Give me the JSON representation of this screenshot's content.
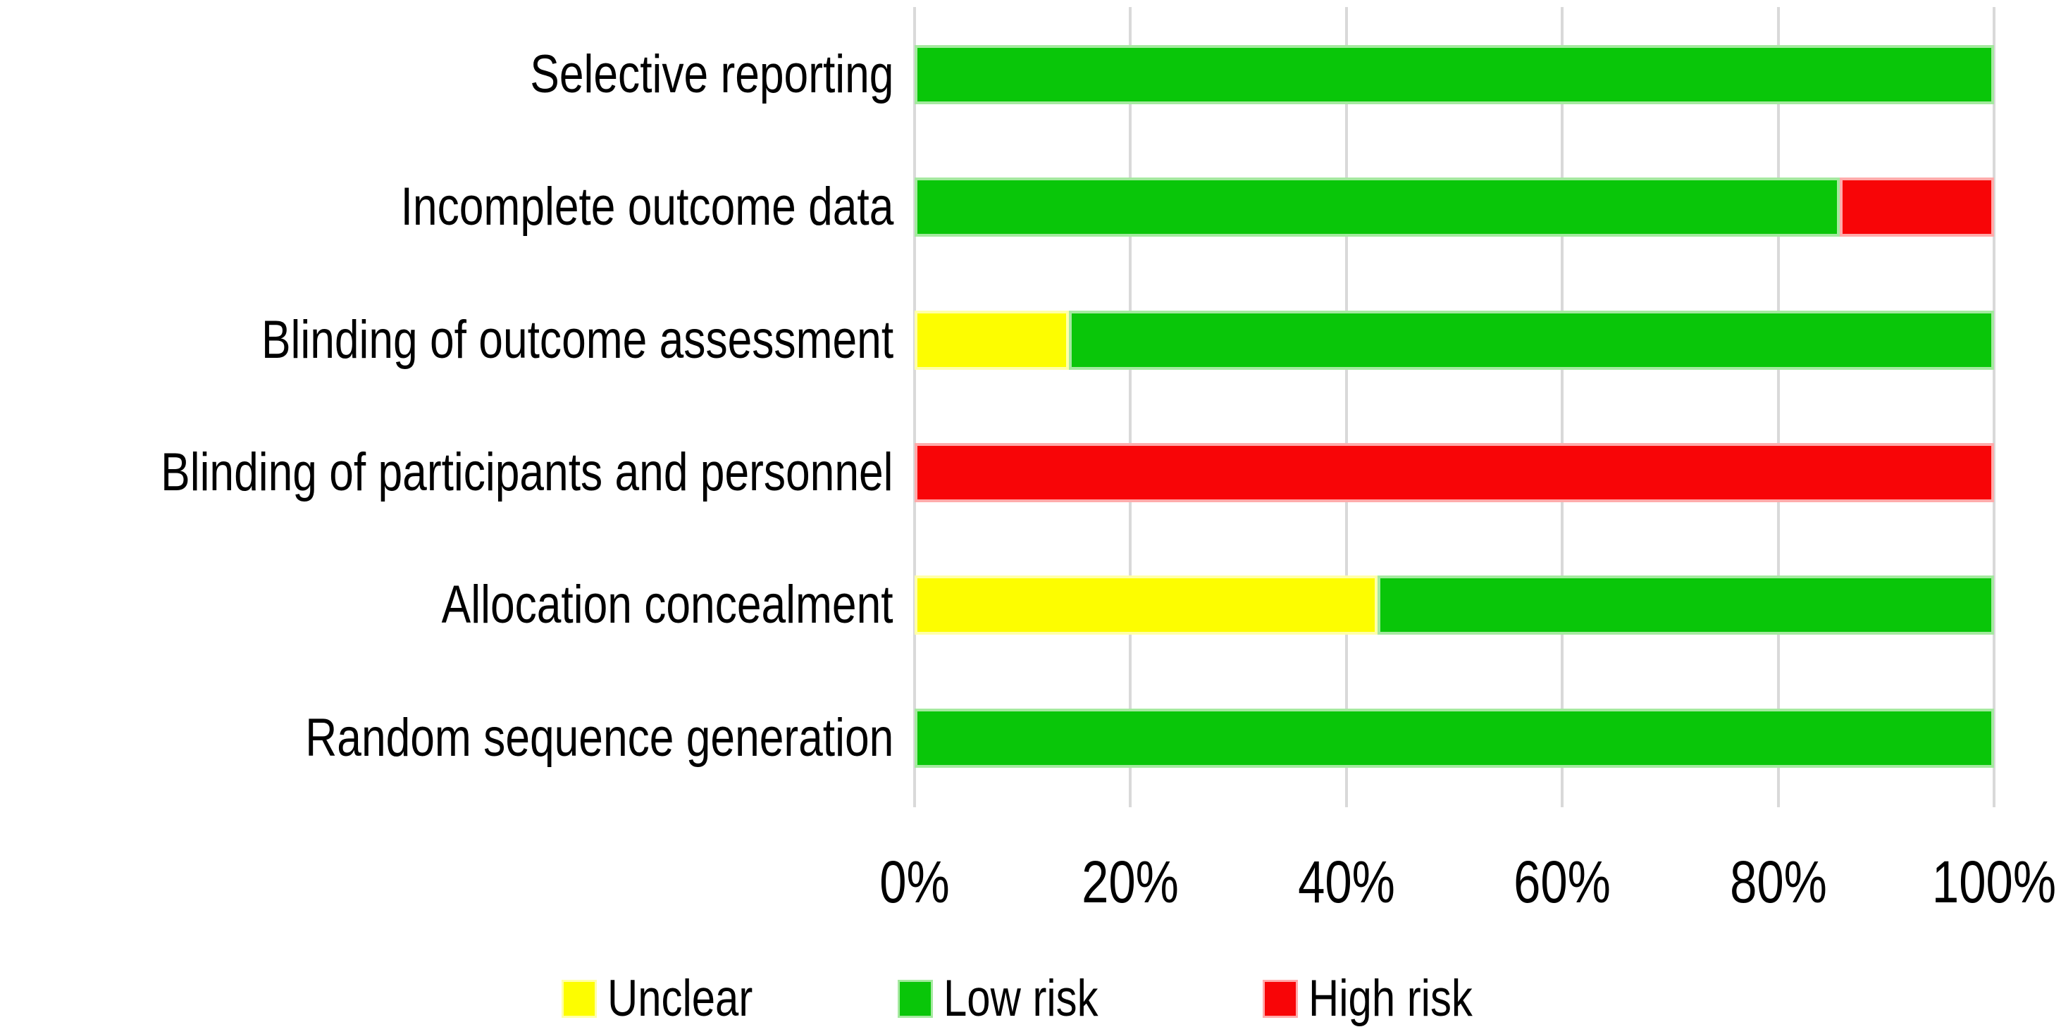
{
  "chart_data": {
    "type": "bar",
    "orientation": "horizontal",
    "stacked": true,
    "title": "",
    "xlabel": "",
    "ylabel": "",
    "units": "percent of studies",
    "categories": [
      "Selective reporting",
      "Incomplete outcome data",
      "Blinding of outcome assessment",
      "Blinding of participants and personnel",
      "Allocation concealment",
      "Random sequence generation"
    ],
    "series": [
      {
        "name": "Unclear",
        "color": "#FDFD00",
        "halo": "#FFFFA8",
        "values": [
          0,
          0,
          14.3,
          0,
          42.9,
          0
        ]
      },
      {
        "name": "Low risk",
        "color": "#09C609",
        "halo": "#A5E9A0",
        "values": [
          100,
          85.7,
          85.7,
          0,
          57.1,
          100
        ]
      },
      {
        "name": "High risk",
        "color": "#F80507",
        "halo": "#FFABAB",
        "values": [
          0,
          14.3,
          0,
          100,
          0,
          0
        ]
      }
    ],
    "xlim": [
      0,
      100
    ],
    "x_tick_labels": [
      "0%",
      "20%",
      "40%",
      "60%",
      "80%",
      "100%"
    ],
    "grid": "vertical gridlines on",
    "gridline_color": "#D9D9D9",
    "text_color": "#000000",
    "background_color": "#FFFFFF",
    "legend_position": "bottom",
    "legend": [
      "Unclear",
      "Low risk",
      "High risk"
    ]
  }
}
